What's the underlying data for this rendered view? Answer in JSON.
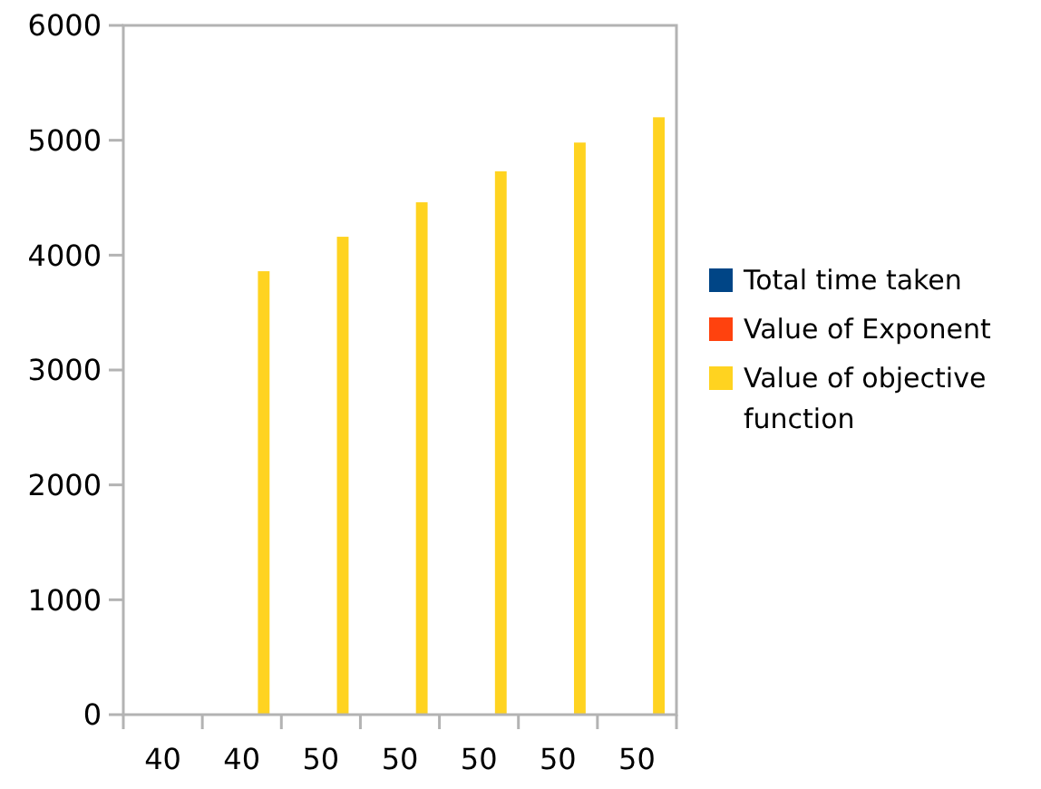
{
  "chart_data": {
    "type": "bar",
    "categories": [
      "40",
      "40",
      "50",
      "50",
      "50",
      "50",
      "50"
    ],
    "series": [
      {
        "name": "Total time taken",
        "color": "#004586",
        "values": [
          0,
          0,
          0,
          0,
          0,
          0,
          0
        ]
      },
      {
        "name": "Value of Exponent",
        "color": "#ff420e",
        "values": [
          0,
          0,
          0,
          0,
          0,
          0,
          0
        ]
      },
      {
        "name": "Value of objective function",
        "color": "#ffd320",
        "values": [
          0,
          3860,
          4160,
          4460,
          4730,
          4980,
          5200
        ]
      }
    ],
    "ylim": [
      0,
      6000
    ],
    "yticks": [
      0,
      1000,
      2000,
      3000,
      4000,
      5000,
      6000
    ],
    "grid": false,
    "legend": "right"
  }
}
